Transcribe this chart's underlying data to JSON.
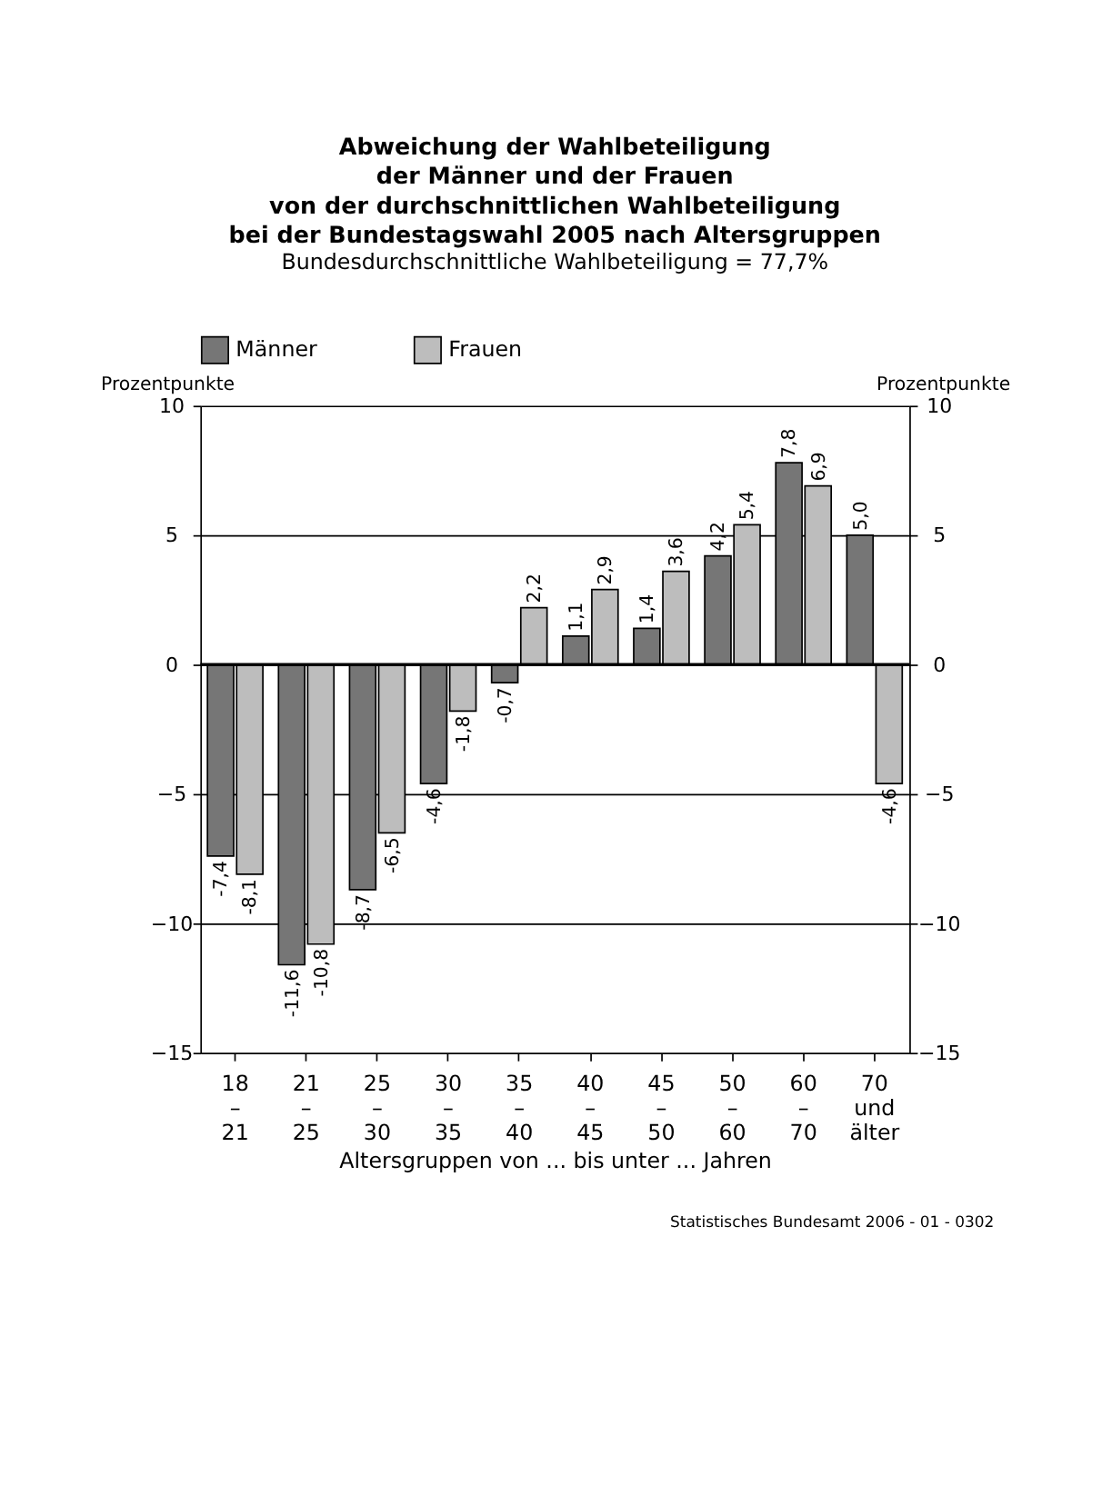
{
  "chart_data": {
    "type": "bar",
    "title": "Abweichung der Wahlbeteiligung\nder Männer und der Frauen\nvon der durchschnittlichen Wahlbeteiligung\nbei der Bundestagswahl 2005 nach Altersgruppen",
    "subtitle": "Bundesdurchschnittliche Wahlbeteiligung = 77,7%",
    "categories": [
      "18\n–\n21",
      "21\n–\n25",
      "25\n–\n30",
      "30\n–\n35",
      "35\n–\n40",
      "40\n–\n45",
      "45\n–\n50",
      "50\n–\n60",
      "60\n–\n70",
      "70\nund\nälter"
    ],
    "series": [
      {
        "name": "Männer",
        "color": "#767676",
        "values": [
          -7.4,
          -11.6,
          -8.7,
          -4.6,
          -0.7,
          1.1,
          1.4,
          4.2,
          7.8,
          5.0
        ],
        "value_labels": [
          "-7,4",
          "-11,6",
          "-8,7",
          "-4,6",
          "-0,7",
          "1,1",
          "1,4",
          "4,2",
          "7,8",
          "5,0"
        ]
      },
      {
        "name": "Frauen",
        "color": "#bdbdbd",
        "values": [
          -8.1,
          -10.8,
          -6.5,
          -1.8,
          2.2,
          2.9,
          3.6,
          5.4,
          6.9,
          -4.6
        ],
        "value_labels": [
          "-8,1",
          "-10,8",
          "-6,5",
          "-1,8",
          "2,2",
          "2,9",
          "3,6",
          "5,4",
          "6,9",
          "-4,6"
        ]
      }
    ],
    "xlabel": "Altersgruppen von ... bis unter ... Jahren",
    "ylabel": "Prozentpunkte",
    "y2label": "Prozentpunkte",
    "ylim": [
      -15,
      10
    ],
    "yticks": [
      -15,
      -10,
      -5,
      0,
      5,
      10
    ],
    "y2lim": [
      -15,
      10
    ],
    "y2ticks": [
      -15,
      -10,
      -5,
      0,
      5,
      10
    ],
    "grid": "y",
    "legend": "top",
    "ref_lines": [
      {
        "axis": "y",
        "value": 0,
        "color": "#000000"
      }
    ],
    "annotations": [
      "Statistisches Bundesamt 2006 - 01 - 0302"
    ]
  }
}
